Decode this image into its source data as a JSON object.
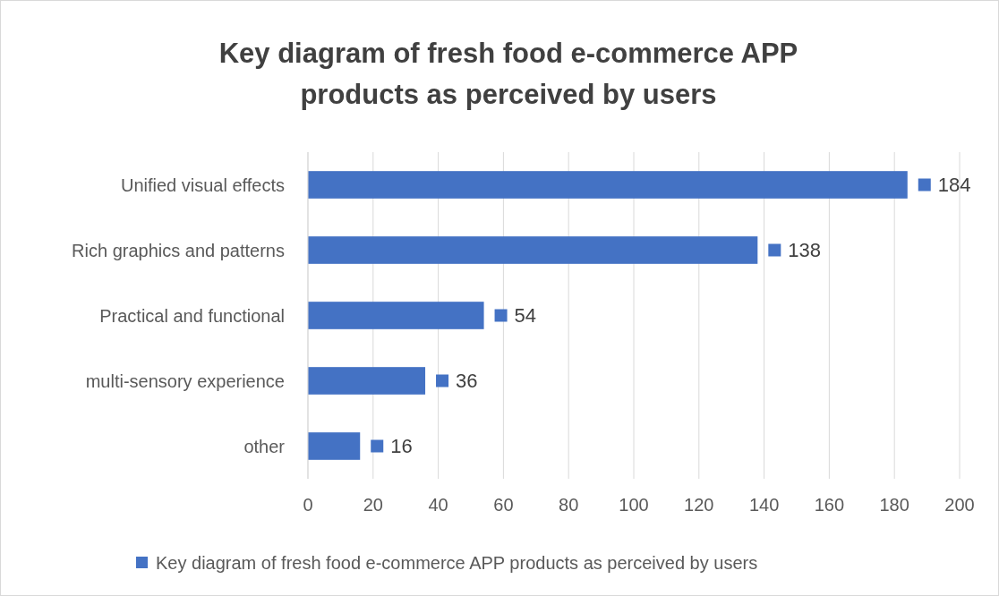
{
  "chart_data": {
    "type": "bar",
    "orientation": "horizontal",
    "title": "Key diagram of fresh food e-commerce APP products as perceived by users",
    "categories": [
      "Unified visual effects",
      "Rich graphics and patterns",
      "Practical and functional",
      "multi-sensory experience",
      "other"
    ],
    "series": [
      {
        "name": "Key diagram of fresh food e-commerce APP products as perceived by users",
        "color": "#4472c4",
        "values": [
          184,
          138,
          54,
          36,
          16
        ]
      }
    ],
    "xlim": [
      0,
      200
    ],
    "xticks": [
      0,
      20,
      40,
      60,
      80,
      100,
      120,
      140,
      160,
      180,
      200
    ],
    "grid": "x",
    "legend": "bottom",
    "data_labels": true
  }
}
